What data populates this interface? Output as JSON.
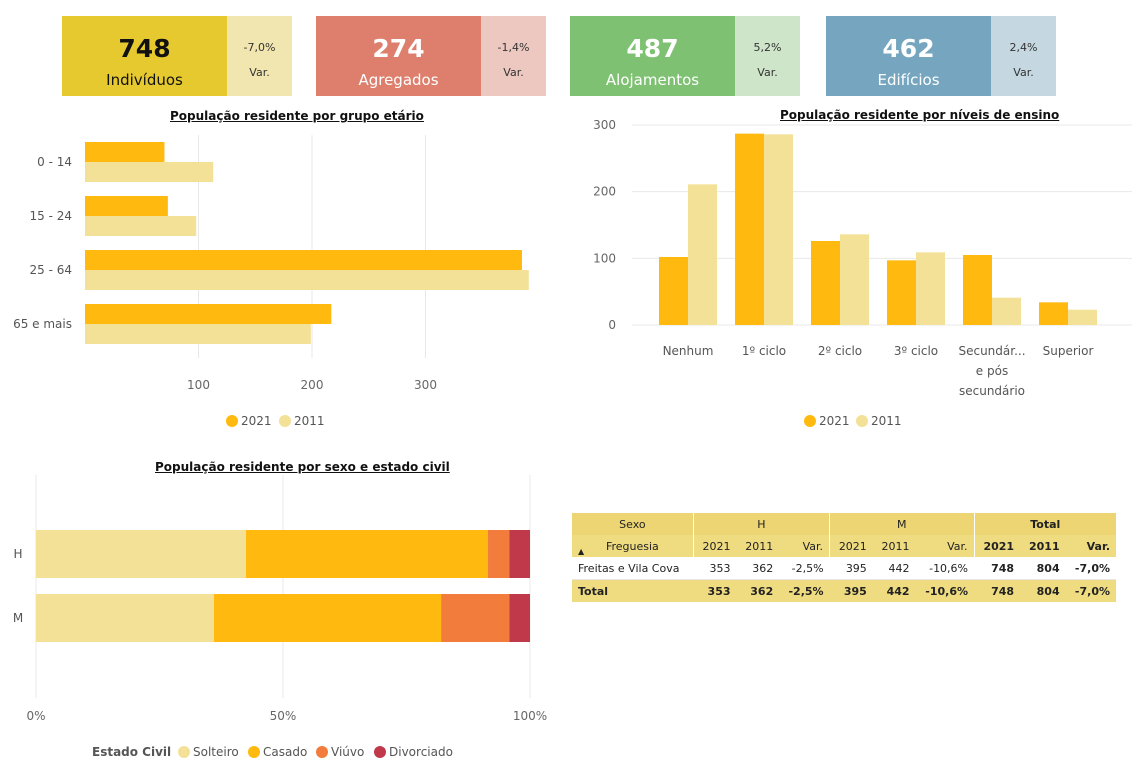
{
  "kpis": [
    {
      "value": "748",
      "label": "Indivíduos",
      "var": "-7,0%",
      "var_label": "Var.",
      "color": "#e6c92e",
      "var_color": "#f1e6b0"
    },
    {
      "value": "274",
      "label": "Agregados",
      "var": "-1,4%",
      "var_label": "Var.",
      "color": "#dd7f6c",
      "var_color": "#ecc8c1"
    },
    {
      "value": "487",
      "label": "Alojamentos",
      "var": "5,2%",
      "var_label": "Var.",
      "color": "#7fc173",
      "var_color": "#cfe5c9"
    },
    {
      "value": "462",
      "label": "Edifícios",
      "var": "2,4%",
      "var_label": "Var.",
      "color": "#76a6bf",
      "var_color": "#c5d8e1"
    }
  ],
  "colors": {
    "y2021": "#ffb90f",
    "y2011": "#f2e196",
    "solteiro": "#f2e196",
    "casado": "#ffb90f",
    "viuvo": "#f27c3c",
    "divorciado": "#c0394b"
  },
  "chart_data": [
    {
      "type": "bar",
      "orientation": "horizontal",
      "title": "População residente por grupo etário",
      "categories": [
        "0 - 14",
        "15 - 24",
        "25 - 64",
        "65 e mais"
      ],
      "series": [
        {
          "name": "2021",
          "values": [
            70,
            73,
            385,
            217
          ]
        },
        {
          "name": "2011",
          "values": [
            113,
            98,
            391,
            199
          ]
        }
      ],
      "xlim": [
        0,
        400
      ],
      "xticks": [
        "100",
        "200",
        "300"
      ],
      "legend": "bottom"
    },
    {
      "type": "bar",
      "title": "População residente por níveis de ensino",
      "categories": [
        "Nenhum",
        "1º ciclo",
        "2º ciclo",
        "3º ciclo",
        "Secundár... e pós secundário",
        "Superior"
      ],
      "category_lines": [
        [
          "Nenhum"
        ],
        [
          "1º ciclo"
        ],
        [
          "2º ciclo"
        ],
        [
          "3º ciclo"
        ],
        [
          "Secundár...",
          "e pós",
          "secundário"
        ],
        [
          "Superior"
        ]
      ],
      "series": [
        {
          "name": "2021",
          "values": [
            102,
            287,
            126,
            97,
            105,
            34
          ]
        },
        {
          "name": "2011",
          "values": [
            211,
            286,
            136,
            109,
            41,
            23
          ]
        }
      ],
      "ylim": [
        0,
        300
      ],
      "yticks": [
        "0",
        "100",
        "200",
        "300"
      ],
      "legend": "bottom"
    },
    {
      "type": "bar",
      "orientation": "horizontal",
      "stacked": "100%",
      "title": "População residente por sexo e estado civil",
      "categories": [
        "H",
        "M"
      ],
      "legend_title": "Estado Civil",
      "series": [
        {
          "name": "Solteiro",
          "values": [
            42.5,
            36
          ]
        },
        {
          "name": "Casado",
          "values": [
            49,
            46
          ]
        },
        {
          "name": "Viúvo",
          "values": [
            4.3,
            13.8
          ]
        },
        {
          "name": "Divorciado",
          "values": [
            4.2,
            4.2
          ]
        }
      ],
      "xticks": [
        "0%",
        "50%",
        "100%"
      ],
      "legend": "bottom"
    }
  ],
  "table": {
    "h_sexo": "Sexo",
    "h_freguesia": "Freguesia",
    "h_H": "H",
    "h_M": "M",
    "h_total": "Total",
    "sub": [
      "2021",
      "2011",
      "Var."
    ],
    "row": {
      "name": "Freitas e Vila Cova",
      "cells": [
        "353",
        "362",
        "-2,5%",
        "395",
        "442",
        "-10,6%",
        "748",
        "804",
        "-7,0%"
      ]
    },
    "total": {
      "name": "Total",
      "cells": [
        "353",
        "362",
        "-2,5%",
        "395",
        "442",
        "-10,6%",
        "748",
        "804",
        "-7,0%"
      ]
    }
  }
}
